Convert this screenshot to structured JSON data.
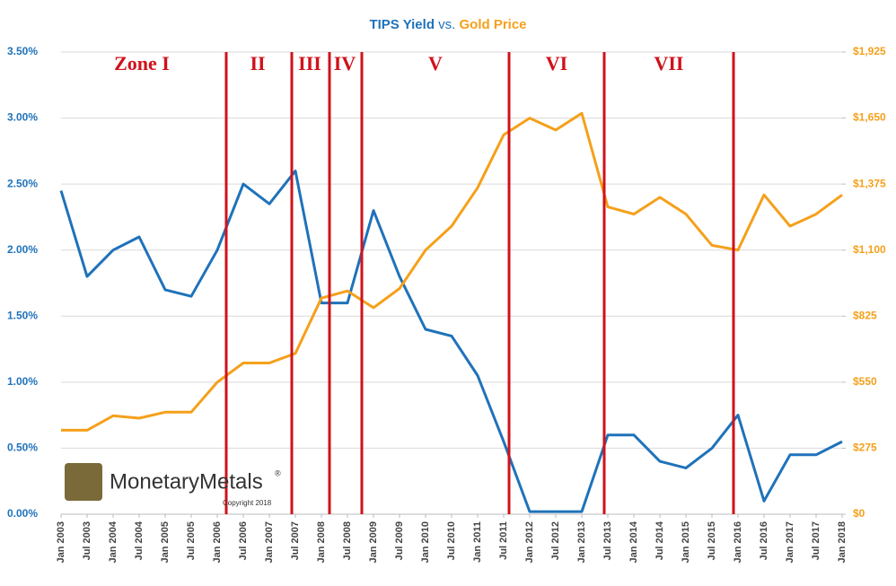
{
  "chart_data": {
    "type": "line",
    "title": [
      "TIPS Yield",
      "vs.",
      "Gold Price"
    ],
    "categories": [
      "Jan 2003",
      "Jul 2003",
      "Jan 2004",
      "Jul 2004",
      "Jan 2005",
      "Jul 2005",
      "Jan 2006",
      "Jul 2006",
      "Jan 2007",
      "Jul 2007",
      "Jan 2008",
      "Jul 2008",
      "Jan 2009",
      "Jul 2009",
      "Jan 2010",
      "Jul 2010",
      "Jan 2011",
      "Jul 2011",
      "Jan 2012",
      "Jul 2012",
      "Jan 2013",
      "Jul 2013",
      "Jan 2014",
      "Jul 2014",
      "Jan 2015",
      "Jul 2015",
      "Jan 2016",
      "Jul 2016",
      "Jan 2017",
      "Jul 2017",
      "Jan 2018"
    ],
    "series": [
      {
        "name": "TIPS Yield",
        "color": "#1f72ba",
        "axis": "y",
        "values": [
          2.45,
          1.8,
          2.0,
          2.1,
          1.7,
          1.65,
          2.0,
          2.5,
          2.35,
          2.6,
          1.6,
          1.6,
          2.3,
          1.8,
          1.4,
          1.35,
          1.05,
          0.55,
          0.02,
          0.02,
          0.02,
          0.6,
          0.6,
          0.4,
          0.35,
          0.5,
          0.75,
          0.1,
          0.45,
          0.45,
          0.55
        ]
      },
      {
        "name": "Gold Price",
        "color": "#f5a01a",
        "axis": "y2",
        "values": [
          350,
          350,
          410,
          400,
          425,
          425,
          550,
          630,
          630,
          670,
          900,
          930,
          860,
          940,
          1100,
          1200,
          1360,
          1580,
          1650,
          1600,
          1670,
          1280,
          1250,
          1320,
          1250,
          1120,
          1100,
          1330,
          1200,
          1250,
          1330
        ]
      }
    ],
    "ylim": [
      0,
      3.5
    ],
    "yticks": [
      {
        "value": 0,
        "label": "0.00%"
      },
      {
        "value": 0.5,
        "label": "0.50%"
      },
      {
        "value": 1,
        "label": "1.00%"
      },
      {
        "value": 1.5,
        "label": "1.50%"
      },
      {
        "value": 2,
        "label": "2.00%"
      },
      {
        "value": 2.5,
        "label": "2.50%"
      },
      {
        "value": 3,
        "label": "3.00%"
      },
      {
        "value": 3.5,
        "label": "3.50%"
      }
    ],
    "y2lim": [
      0,
      1925
    ],
    "y2ticks": [
      {
        "value": 0,
        "label": "$0"
      },
      {
        "value": 275,
        "label": "$275"
      },
      {
        "value": 550,
        "label": "$550"
      },
      {
        "value": 825,
        "label": "$825"
      },
      {
        "value": 1100,
        "label": "$1,100"
      },
      {
        "value": 1375,
        "label": "$1,375"
      },
      {
        "value": 1650,
        "label": "$1,650"
      },
      {
        "value": 1925,
        "label": "$1,925"
      }
    ],
    "grid": true,
    "zones": [
      "Zone I",
      "II",
      "III",
      "IV",
      "V",
      "VI",
      "VII"
    ],
    "zone_color": "#d0121b",
    "logo": {
      "name": "MonetaryMetals",
      "mark": "®",
      "note": "Copyright 2018"
    }
  }
}
